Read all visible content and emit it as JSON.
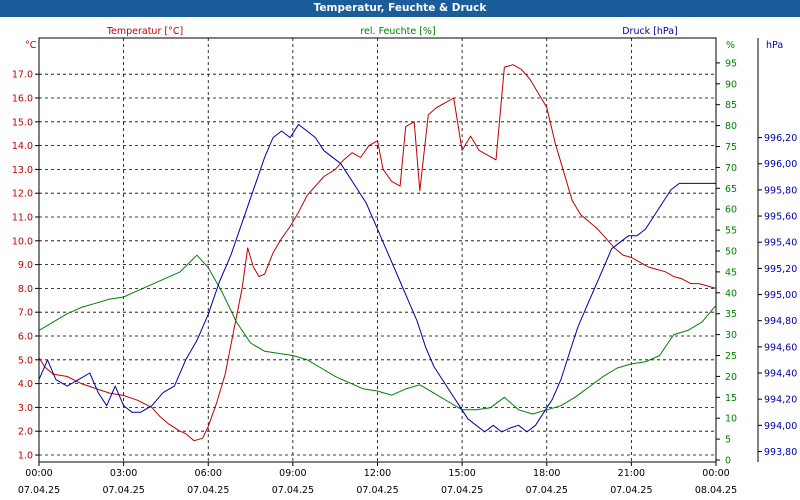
{
  "window": {
    "title": "Temperatur, Feuchte & Druck"
  },
  "colors": {
    "temperature": "#c00000",
    "humidity": "#008000",
    "pressure": "#0000a8",
    "titlebar": "#1b5c9b"
  },
  "chart_data": {
    "type": "line",
    "grid": true,
    "x_ticks": [
      {
        "time": "00:00",
        "date": "07.04.25"
      },
      {
        "time": "03:00",
        "date": "07.04.25"
      },
      {
        "time": "06:00",
        "date": "07.04.25"
      },
      {
        "time": "09:00",
        "date": "07.04.25"
      },
      {
        "time": "12:00",
        "date": "07.04.25"
      },
      {
        "time": "15:00",
        "date": "07.04.25"
      },
      {
        "time": "18:00",
        "date": "07.04.25"
      },
      {
        "time": "21:00",
        "date": "07.04.25"
      },
      {
        "time": "00:00",
        "date": "08.04.25"
      }
    ],
    "axes": {
      "left": {
        "label": "Temperatur [°C]",
        "unit": "°C",
        "ylim": [
          1.0,
          17.0
        ],
        "ticks": [
          "1.0",
          "2.0",
          "3.0",
          "4.0",
          "5.0",
          "6.0",
          "7.0",
          "8.0",
          "9.0",
          "10.0",
          "11.0",
          "12.0",
          "13.0",
          "14.0",
          "15.0",
          "16.0",
          "17.0"
        ]
      },
      "mid": {
        "label": "rel. Feuchte [%]",
        "unit": "%",
        "ylim": [
          0,
          95
        ],
        "ticks": [
          "0",
          "5",
          "10",
          "15",
          "20",
          "25",
          "30",
          "35",
          "40",
          "45",
          "50",
          "55",
          "60",
          "65",
          "70",
          "75",
          "80",
          "85",
          "90",
          "95"
        ]
      },
      "right": {
        "label": "Druck [hPa]",
        "unit": "hPa",
        "ylim": [
          993.8,
          996.2
        ],
        "ticks": [
          "993,80",
          "994,00",
          "994,20",
          "994,40",
          "994,60",
          "994,80",
          "995,00",
          "995,20",
          "995,40",
          "995,60",
          "995,80",
          "996,00",
          "996,20"
        ]
      }
    },
    "series": [
      {
        "name": "Temperatur [°C]",
        "axis": "left",
        "color": "#c00000",
        "x": [
          0,
          0.2,
          0.5,
          1,
          1.5,
          2,
          2.5,
          3,
          3.5,
          4,
          4.3,
          4.6,
          5,
          5.2,
          5.5,
          5.8,
          6,
          6.3,
          6.6,
          6.9,
          7.2,
          7.4,
          7.6,
          7.8,
          8,
          8.3,
          8.6,
          8.9,
          9.2,
          9.5,
          9.8,
          10.1,
          10.5,
          10.8,
          11.1,
          11.4,
          11.7,
          12,
          12.2,
          12.5,
          12.8,
          13,
          13.3,
          13.5,
          13.8,
          14.1,
          14.4,
          14.7,
          15,
          15.3,
          15.6,
          15.9,
          16.2,
          16.5,
          16.8,
          17.1,
          17.4,
          17.7,
          18,
          18.3,
          18.6,
          18.9,
          19.2,
          19.5,
          19.8,
          20.1,
          20.4,
          20.7,
          21,
          21.3,
          21.6,
          21.9,
          22.2,
          22.5,
          22.8,
          23.1,
          23.4,
          23.7,
          24
        ],
        "values": [
          5.1,
          4.7,
          4.4,
          4.3,
          4.0,
          3.8,
          3.6,
          3.5,
          3.3,
          3.0,
          2.6,
          2.3,
          2.0,
          1.9,
          1.6,
          1.7,
          2.2,
          3.2,
          4.4,
          6.2,
          8.0,
          9.7,
          8.9,
          8.5,
          8.6,
          9.5,
          10.1,
          10.6,
          11.2,
          11.9,
          12.3,
          12.7,
          13.0,
          13.4,
          13.7,
          13.5,
          14.0,
          14.2,
          13.0,
          12.5,
          12.3,
          14.8,
          15.0,
          12.1,
          15.3,
          15.6,
          15.8,
          16.0,
          13.8,
          14.4,
          13.8,
          13.6,
          13.4,
          17.3,
          17.4,
          17.2,
          16.8,
          16.2,
          15.6,
          14.1,
          12.9,
          11.7,
          11.1,
          10.8,
          10.5,
          10.1,
          9.7,
          9.4,
          9.3,
          9.1,
          8.9,
          8.8,
          8.7,
          8.5,
          8.4,
          8.2,
          8.2,
          8.1,
          8.0
        ]
      },
      {
        "name": "rel. Feuchte [%]",
        "axis": "mid",
        "color": "#008000",
        "x": [
          0,
          0.5,
          1,
          1.5,
          2,
          2.5,
          3,
          3.5,
          4,
          4.5,
          5,
          5.3,
          5.6,
          6,
          6.5,
          7,
          7.5,
          8,
          8.5,
          9,
          9.5,
          10,
          10.5,
          11,
          11.5,
          12,
          12.5,
          13,
          13.5,
          14,
          14.5,
          15,
          15.5,
          16,
          16.5,
          17,
          17.5,
          18,
          18.5,
          19,
          19.5,
          20,
          20.5,
          21,
          21.5,
          22,
          22.5,
          23,
          23.5,
          24
        ],
        "values": [
          31,
          33,
          35,
          36.5,
          37.5,
          38.5,
          39,
          40.5,
          42,
          43.5,
          45,
          47,
          49,
          46,
          40,
          33,
          28,
          26,
          25.5,
          25,
          24,
          22,
          20,
          18.5,
          17,
          16.5,
          15.5,
          17,
          18,
          16,
          14,
          12,
          12,
          12.5,
          15,
          12,
          11,
          12,
          13,
          15,
          17.5,
          20,
          22,
          23,
          23.5,
          25,
          30,
          31,
          33,
          37
        ]
      },
      {
        "name": "Druck [hPa]",
        "axis": "right",
        "color": "#0000a8",
        "x": [
          0,
          0.3,
          0.6,
          1,
          1.4,
          1.8,
          2.1,
          2.4,
          2.7,
          3,
          3.3,
          3.6,
          4,
          4.4,
          4.8,
          5.2,
          5.6,
          6,
          6.4,
          6.8,
          7.2,
          7.6,
          8,
          8.3,
          8.6,
          8.9,
          9.2,
          9.5,
          9.8,
          10.1,
          10.4,
          10.7,
          11,
          11.3,
          11.6,
          11.9,
          12.2,
          12.5,
          12.8,
          13.1,
          13.4,
          13.7,
          14,
          14.3,
          14.6,
          14.9,
          15.2,
          15.5,
          15.8,
          16.1,
          16.4,
          16.7,
          17,
          17.3,
          17.6,
          17.9,
          18.2,
          18.5,
          18.8,
          19.1,
          19.4,
          19.7,
          20,
          20.3,
          20.6,
          20.9,
          21.2,
          21.5,
          21.8,
          22.1,
          22.4,
          22.7,
          23,
          23.3,
          23.6,
          24
        ],
        "values": [
          994.35,
          994.5,
          994.35,
          994.3,
          994.35,
          994.4,
          994.25,
          994.15,
          994.3,
          994.15,
          994.1,
          994.1,
          994.15,
          994.25,
          994.3,
          994.5,
          994.65,
          994.85,
          995.1,
          995.3,
          995.55,
          995.8,
          996.05,
          996.2,
          996.25,
          996.2,
          996.3,
          996.25,
          996.2,
          996.1,
          996.05,
          996.0,
          995.9,
          995.8,
          995.7,
          995.55,
          995.4,
          995.25,
          995.1,
          994.95,
          994.8,
          994.6,
          994.45,
          994.35,
          994.25,
          994.15,
          994.05,
          994.0,
          993.95,
          994.0,
          993.95,
          993.98,
          994.0,
          993.95,
          994.0,
          994.1,
          994.2,
          994.35,
          994.55,
          994.75,
          994.9,
          995.05,
          995.2,
          995.35,
          995.4,
          995.45,
          995.45,
          995.5,
          995.6,
          995.7,
          995.8,
          995.85,
          995.85,
          995.85,
          995.85,
          995.85
        ]
      }
    ]
  }
}
